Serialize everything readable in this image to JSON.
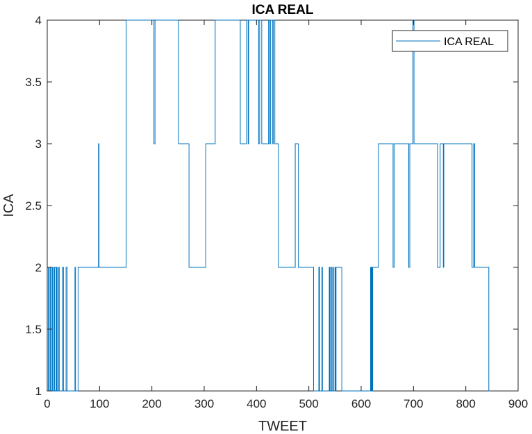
{
  "chart_data": {
    "type": "line",
    "title": "ICA REAL",
    "xlabel": "TWEET",
    "ylabel": "ICA",
    "xlim": [
      0,
      900
    ],
    "ylim": [
      1,
      4
    ],
    "xticks": [
      0,
      100,
      200,
      300,
      400,
      500,
      600,
      700,
      800,
      900
    ],
    "yticks": [
      1,
      1.5,
      2,
      2.5,
      3,
      3.5,
      4
    ],
    "xtick_labels": [
      "0",
      "100",
      "200",
      "300",
      "400",
      "500",
      "600",
      "700",
      "800",
      "900"
    ],
    "ytick_labels": [
      "1",
      "1.5",
      "2",
      "2.5",
      "3",
      "3.5",
      "4"
    ],
    "grid": false,
    "legend_position": "top-right",
    "series": [
      {
        "name": "ICA REAL",
        "color": "#0072BD",
        "step": [
          [
            0,
            1
          ],
          [
            2,
            2
          ],
          [
            4,
            1
          ],
          [
            6,
            2
          ],
          [
            8,
            1
          ],
          [
            10,
            2
          ],
          [
            12,
            1
          ],
          [
            14,
            2
          ],
          [
            17,
            1
          ],
          [
            18,
            2
          ],
          [
            19,
            1
          ],
          [
            22,
            2
          ],
          [
            23,
            1
          ],
          [
            28,
            1
          ],
          [
            29,
            2
          ],
          [
            31,
            1
          ],
          [
            36,
            2
          ],
          [
            38,
            1
          ],
          [
            51,
            1
          ],
          [
            53,
            2
          ],
          [
            54,
            1
          ],
          [
            57,
            1
          ],
          [
            59,
            2
          ],
          [
            97,
            2
          ],
          [
            98,
            3
          ],
          [
            99,
            2
          ],
          [
            150,
            2
          ],
          [
            151,
            4
          ],
          [
            203,
            4
          ],
          [
            204,
            3
          ],
          [
            206,
            4
          ],
          [
            210,
            4
          ],
          [
            250,
            4
          ],
          [
            251,
            3
          ],
          [
            270,
            3
          ],
          [
            271,
            2
          ],
          [
            302,
            2
          ],
          [
            303,
            3
          ],
          [
            320,
            3
          ],
          [
            321,
            4
          ],
          [
            368,
            4
          ],
          [
            369,
            3
          ],
          [
            380,
            3
          ],
          [
            381,
            4
          ],
          [
            384,
            3
          ],
          [
            385,
            4
          ],
          [
            403,
            4
          ],
          [
            404,
            3
          ],
          [
            406,
            4
          ],
          [
            410,
            3
          ],
          [
            422,
            3
          ],
          [
            423,
            4
          ],
          [
            425,
            3
          ],
          [
            427,
            4
          ],
          [
            430,
            4
          ],
          [
            431,
            3
          ],
          [
            432,
            4
          ],
          [
            434,
            4
          ],
          [
            435,
            3
          ],
          [
            441,
            3
          ],
          [
            442,
            2
          ],
          [
            473,
            2
          ],
          [
            474,
            3
          ],
          [
            479,
            3
          ],
          [
            480,
            2
          ],
          [
            508,
            2
          ],
          [
            509,
            1
          ],
          [
            519,
            2
          ],
          [
            521,
            1
          ],
          [
            524,
            1
          ],
          [
            525,
            2
          ],
          [
            526,
            1
          ],
          [
            537,
            1
          ],
          [
            539,
            2
          ],
          [
            540,
            1
          ],
          [
            542,
            2
          ],
          [
            544,
            1
          ],
          [
            546,
            2
          ],
          [
            547,
            1
          ],
          [
            549,
            1
          ],
          [
            550,
            2
          ],
          [
            551,
            1
          ],
          [
            552,
            2
          ],
          [
            562,
            2
          ],
          [
            563,
            1
          ],
          [
            617,
            1
          ],
          [
            618,
            2
          ],
          [
            619,
            1
          ],
          [
            620,
            2
          ],
          [
            621,
            1
          ],
          [
            622,
            2
          ],
          [
            632,
            2
          ],
          [
            633,
            3
          ],
          [
            660,
            3
          ],
          [
            661,
            2
          ],
          [
            663,
            3
          ],
          [
            690,
            3
          ],
          [
            691,
            2
          ],
          [
            693,
            3
          ],
          [
            698,
            3
          ],
          [
            699,
            4
          ],
          [
            701,
            3
          ],
          [
            745,
            3
          ],
          [
            746,
            2
          ],
          [
            751,
            3
          ],
          [
            756,
            3
          ],
          [
            757,
            2
          ],
          [
            758,
            3
          ],
          [
            811,
            3
          ],
          [
            812,
            2
          ],
          [
            815,
            3
          ],
          [
            817,
            2
          ],
          [
            843,
            2
          ],
          [
            844,
            1
          ],
          [
            846,
            1
          ]
        ]
      }
    ]
  }
}
